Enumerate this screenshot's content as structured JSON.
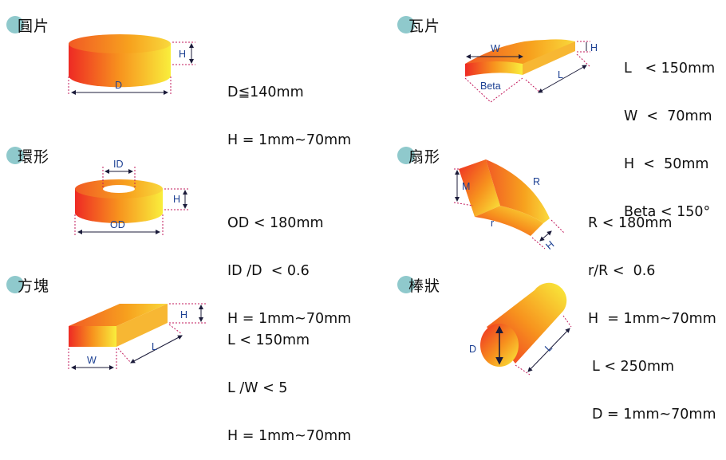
{
  "colors": {
    "gradient_start": "#ee2a24",
    "gradient_mid": "#f7931e",
    "gradient_end": "#f9ee3c",
    "dot": "#8fc9cc",
    "dimension_line": "#c2185b",
    "dimension_text": "#1b3f92"
  },
  "shapes": [
    {
      "id": "disc",
      "title": "圓片",
      "dims": {
        "height": "H",
        "diameter": "D"
      },
      "specs": [
        "D≦140mm",
        "H = 1mm~70mm"
      ]
    },
    {
      "id": "tile",
      "title": "瓦片",
      "dims": {
        "width": "W",
        "height": "H",
        "length": "L",
        "angle": "Beta"
      },
      "specs": [
        "L   < 150mm",
        "W  <  70mm",
        "H  <  50mm",
        "Beta < 150°"
      ]
    },
    {
      "id": "ring",
      "title": "環形",
      "dims": {
        "inner": "ID",
        "height": "H",
        "outer": "OD"
      },
      "specs": [
        "OD < 180mm",
        "ID /D  < 0.6",
        "H = 1mm~70mm"
      ]
    },
    {
      "id": "sector",
      "title": "扇形",
      "dims": {
        "m": "M",
        "radius": "R",
        "inner": "r",
        "height": "H"
      },
      "specs": [
        "R < 180mm",
        "r/R <  0.6",
        "H  = 1mm~70mm"
      ]
    },
    {
      "id": "block",
      "title": "方塊",
      "dims": {
        "height": "H",
        "length": "L",
        "width": "W"
      },
      "specs": [
        "L < 150mm",
        "L /W < 5",
        "H = 1mm~70mm"
      ]
    },
    {
      "id": "rod",
      "title": "棒狀",
      "dims": {
        "diameter": "D",
        "length": "L"
      },
      "specs": [
        "L < 250mm",
        "D = 1mm~70mm"
      ]
    }
  ]
}
